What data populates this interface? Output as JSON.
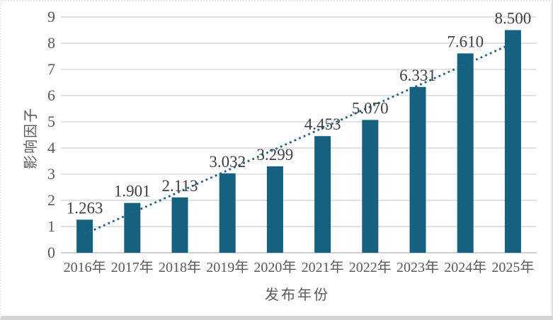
{
  "chart_data": {
    "type": "bar",
    "title": "",
    "categories": [
      "2016年",
      "2017年",
      "2018年",
      "2019年",
      "2020年",
      "2021年",
      "2022年",
      "2023年",
      "2024年",
      "2025年"
    ],
    "values": [
      1.263,
      1.901,
      2.113,
      3.032,
      3.299,
      4.453,
      5.07,
      6.331,
      7.61,
      8.5
    ],
    "data_labels": [
      "1.263",
      "1.901",
      "2.113",
      "3.032",
      "3.299",
      "4.453",
      "5.070",
      "6.331",
      "7.610",
      "8.500"
    ],
    "xlabel": "发布年份",
    "ylabel": "影响因子",
    "ylim": [
      0,
      9
    ],
    "y_ticks": [
      0,
      1,
      2,
      3,
      4,
      5,
      6,
      7,
      8,
      9
    ],
    "grid": true,
    "legend": "none",
    "trendline": {
      "type": "linear",
      "style": "dotted"
    },
    "colors": {
      "bar": "#16617f",
      "trendline": "#1d6285",
      "gridline": "#d9d9d9",
      "axis_line": "#bfbfbf",
      "tick_label": "#595959",
      "data_label": "#3f3f3f"
    }
  }
}
